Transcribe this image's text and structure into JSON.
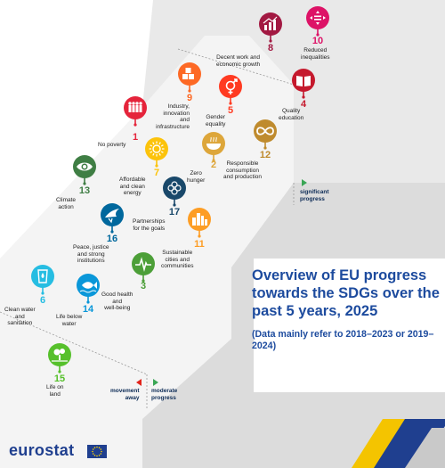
{
  "title": "Overview of EU progress towards the SDGs over the past 5 years, 2025",
  "subtitle": "(Data mainly refer to 2018–2023 or 2019–2024)",
  "legend": {
    "significant": "significant\nprogress",
    "moderate": "moderate\nprogress",
    "away": "movement\naway"
  },
  "logo": {
    "text": "eurostat"
  },
  "colors": {
    "zone_significant": "#e9e9e9",
    "zone_moderate": "#d6d6d6",
    "zone_dark": "#b9b9b9",
    "arrow_green": "#3aa655",
    "arrow_red": "#e2231a",
    "title_blue": "#1d4b9e"
  },
  "goals": [
    {
      "id": "8",
      "number": "8",
      "label": "Decent work and\neconomic growth",
      "icon": "growth-chart-icon",
      "color": "#a21942"
    },
    {
      "id": "10",
      "number": "10",
      "label": "Reduced\ninequalities",
      "icon": "equality-arrows-icon",
      "color": "#dd1367"
    },
    {
      "id": "9",
      "number": "9",
      "label": "Industry,\ninnovation\nand\ninfrastructure",
      "icon": "cubes-icon",
      "color": "#fd6925"
    },
    {
      "id": "5",
      "number": "5",
      "label": "Gender\nequality",
      "icon": "gender-symbol-icon",
      "color": "#ff3a21"
    },
    {
      "id": "4",
      "number": "4",
      "label": "Quality\neducation",
      "icon": "book-icon",
      "color": "#c5192d"
    },
    {
      "id": "1",
      "number": "1",
      "label": "No poverty",
      "icon": "family-icon",
      "color": "#e5243b"
    },
    {
      "id": "12",
      "number": "12",
      "label": "Responsible\nconsumption\nand production",
      "icon": "infinity-icon",
      "color": "#bf8b2e"
    },
    {
      "id": "2",
      "number": "2",
      "label": "Zero\nhunger",
      "icon": "food-bowl-icon",
      "color": "#dda63a"
    },
    {
      "id": "7",
      "number": "7",
      "label": "Affordable\nand clean\nenergy",
      "icon": "sun-icon",
      "color": "#fcc30b"
    },
    {
      "id": "13",
      "number": "13",
      "label": "Climate\naction",
      "icon": "eye-globe-icon",
      "color": "#3f7e44"
    },
    {
      "id": "17",
      "number": "17",
      "label": "Partnerships\nfor the goals",
      "icon": "rings-icon",
      "color": "#19486a"
    },
    {
      "id": "16",
      "number": "16",
      "label": "Peace, justice\nand strong\ninstitutions",
      "icon": "dove-icon",
      "color": "#00689d"
    },
    {
      "id": "11",
      "number": "11",
      "label": "Sustainable\ncities and\ncommunities",
      "icon": "city-icon",
      "color": "#fd9d24"
    },
    {
      "id": "3",
      "number": "3",
      "label": "Good health\nand\nwell-being",
      "icon": "heartbeat-icon",
      "color": "#4c9f38"
    },
    {
      "id": "6",
      "number": "6",
      "label": "Clean water\nand\nsanitation",
      "icon": "water-glass-icon",
      "color": "#26bde2"
    },
    {
      "id": "14",
      "number": "14",
      "label": "Life below\nwater",
      "icon": "fish-icon",
      "color": "#0a97d9"
    },
    {
      "id": "15",
      "number": "15",
      "label": "Life on\nland",
      "icon": "tree-icon",
      "color": "#56c02b"
    }
  ]
}
